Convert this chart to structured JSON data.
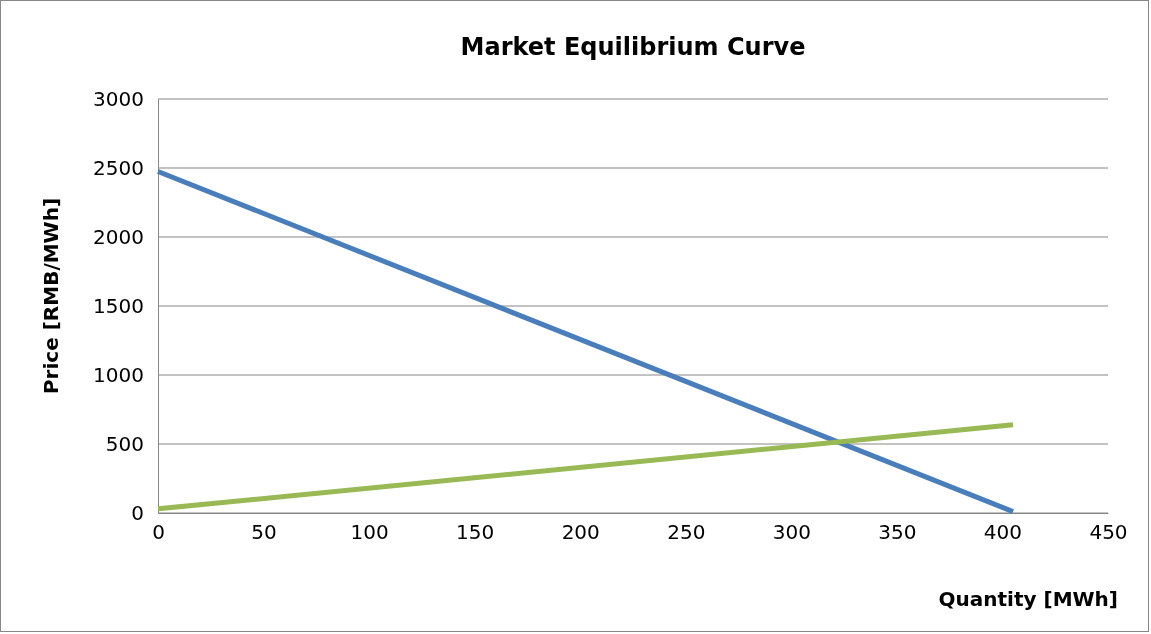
{
  "chart_data": {
    "type": "line",
    "title": "Market Equilibrium Curve",
    "xlabel": "Quantity [MWh]",
    "ylabel": "Price [RMB/MWh]",
    "x": [
      0,
      405
    ],
    "series": [
      {
        "color": "#4a7ebb",
        "values": [
          2475,
          10
        ]
      },
      {
        "color": "#98b954",
        "values": [
          30,
          640
        ]
      }
    ],
    "xlim": [
      0,
      450
    ],
    "xticks": [
      0,
      50,
      100,
      150,
      200,
      250,
      300,
      350,
      400,
      450
    ],
    "ylim": [
      0,
      3000
    ],
    "yticks": [
      0,
      500,
      1000,
      1500,
      2000,
      2500,
      3000
    ],
    "grid": "y",
    "marker": "none",
    "line_style": "solid"
  }
}
